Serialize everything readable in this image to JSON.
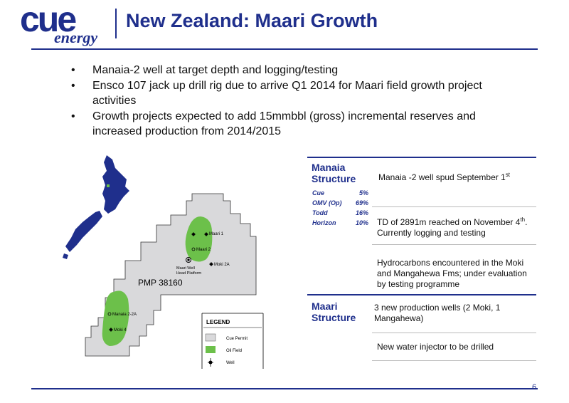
{
  "logo": {
    "word1": "cue",
    "word2": "energy"
  },
  "title": "New Zealand: Maari Growth",
  "bullets": [
    "Manaia-2 well at target depth and logging/testing",
    "Ensco 107 jack up drill rig due to arrive Q1 2014 for Maari field growth project activities",
    "Growth projects expected to add 15mmbbl (gross) incremental reserves and increased production from 2014/2015"
  ],
  "map": {
    "permit_label": "PMP 38160",
    "wells": {
      "maari1": "Maari 1",
      "maari2": "Maari 2",
      "moki2a": "Moki 2A",
      "platform": "Maari Well Head Platform",
      "manaia2a": "Manaia 2-2A",
      "moki4": "Moki 4"
    },
    "legend": {
      "title": "LEGEND",
      "cue_permit": "Cue Permit",
      "oil_field": "Oil Field",
      "well": "Well"
    },
    "colors": {
      "nz_land": "#1f2f8c",
      "permit": "#d9d9db",
      "oil_field": "#6cc04a"
    }
  },
  "manaia": {
    "heading": "Manaia Structure",
    "partners": [
      {
        "name": "Cue",
        "pct": "5%"
      },
      {
        "name": "OMV (Op)",
        "pct": "69%"
      },
      {
        "name": "Todd",
        "pct": "16%"
      },
      {
        "name": "Horizon",
        "pct": "10%"
      }
    ],
    "r1_text": "Manaia -2 well spud September 1",
    "r1_sup": "st",
    "r2_text1": "TD of 2891m reached on November 4",
    "r2_sup": "th",
    "r2_text2": ". Currently logging and testing",
    "r3_text": "Hydrocarbons encountered in the Moki and Mangahewa Fms; under evaluation  by testing programme"
  },
  "maari": {
    "heading": "Maari Structure",
    "r1_text": "3 new production wells (2 Moki, 1 Mangahewa)",
    "r2_text": "New water injector to be drilled"
  },
  "page_number": "6"
}
